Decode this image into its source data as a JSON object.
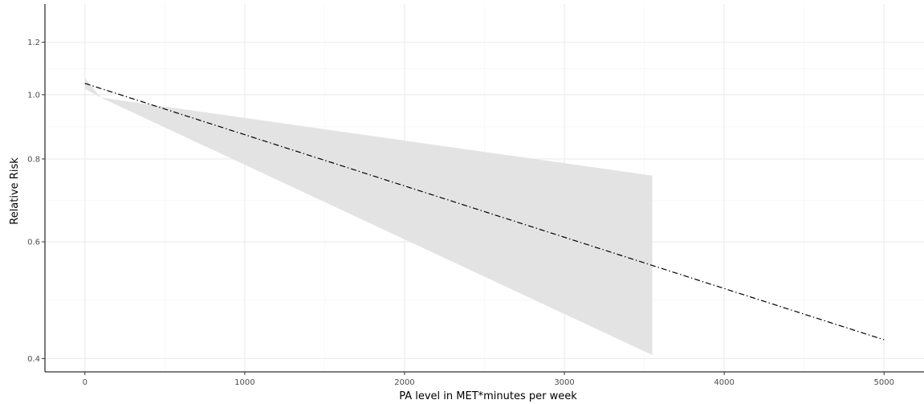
{
  "chart_data": {
    "type": "line",
    "xlabel": "PA level in MET*minutes per week",
    "ylabel": "Relative Risk",
    "xlim": [
      -250,
      5250
    ],
    "ylim": [
      0.382,
      1.37
    ],
    "y_scale": "log",
    "x_ticks": [
      0,
      1000,
      2000,
      3000,
      4000,
      5000
    ],
    "x_tick_labels": [
      "0",
      "1000",
      "2000",
      "3000",
      "4000",
      "5000"
    ],
    "y_ticks": [
      0.4,
      0.6,
      0.8,
      1.0,
      1.2
    ],
    "y_tick_labels": [
      "0.4",
      "0.6",
      "0.8",
      "1.0",
      "1.2"
    ],
    "grid": true,
    "series": [
      {
        "line_style": "dash-dot",
        "color": "#000000",
        "x": [
          0,
          5000
        ],
        "y": [
          1.04,
          0.427
        ]
      }
    ],
    "confidence_band": {
      "color": "#e3e3e3",
      "x": [
        0,
        100,
        3550
      ],
      "upper": [
        1.06,
        0.99,
        0.755
      ],
      "lower": [
        1.02,
        0.99,
        0.405
      ]
    }
  }
}
